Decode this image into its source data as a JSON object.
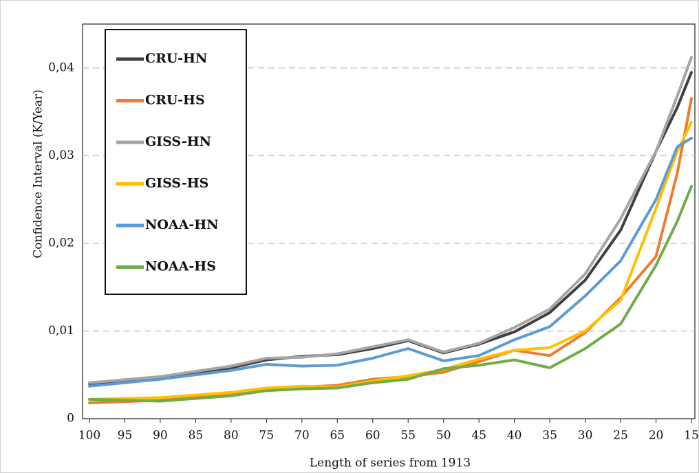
{
  "chart_data": {
    "type": "line",
    "x_label": "Length of series from 1913",
    "y_label": "Confidence Interval (K/Year)",
    "x": [
      100,
      90,
      80,
      75,
      70,
      65,
      60,
      55,
      50,
      45,
      40,
      35,
      30,
      25,
      20,
      17,
      15
    ],
    "xlim": [
      100,
      15
    ],
    "xticks": [
      100,
      95,
      90,
      85,
      80,
      75,
      70,
      65,
      60,
      55,
      50,
      45,
      40,
      35,
      30,
      25,
      20,
      15
    ],
    "ylim": [
      0,
      0.045
    ],
    "yticks": [
      0,
      {
        "value": 0.01,
        "label": "0,01"
      },
      {
        "value": 0.02,
        "label": "0,02"
      },
      {
        "value": 0.03,
        "label": "0,03"
      },
      {
        "value": 0.04,
        "label": "0,04"
      }
    ],
    "grid": true,
    "legend": "upper left",
    "series": [
      {
        "name": "CRU-HN",
        "color": "#404040",
        "values": [
          0.004,
          0.0047,
          0.0058,
          0.0067,
          0.0071,
          0.0073,
          0.008,
          0.0089,
          0.0075,
          0.0085,
          0.0099,
          0.0121,
          0.0158,
          0.0215,
          0.0305,
          0.0355,
          0.0395
        ]
      },
      {
        "name": "CRU-HS",
        "color": "#ed7d31",
        "values": [
          0.0018,
          0.0021,
          0.0028,
          0.0033,
          0.0036,
          0.0038,
          0.0045,
          0.0048,
          0.0053,
          0.0065,
          0.0078,
          0.0072,
          0.0098,
          0.0138,
          0.0185,
          0.028,
          0.0365
        ]
      },
      {
        "name": "GISS-HN",
        "color": "#a5a5a5",
        "values": [
          0.0041,
          0.0048,
          0.006,
          0.0069,
          0.007,
          0.0074,
          0.0082,
          0.009,
          0.0076,
          0.0086,
          0.0104,
          0.0125,
          0.0165,
          0.0228,
          0.0305,
          0.0368,
          0.0412
        ]
      },
      {
        "name": "GISS-HS",
        "color": "#ffc000",
        "values": [
          0.0022,
          0.0024,
          0.003,
          0.0035,
          0.0037,
          0.0036,
          0.0043,
          0.0049,
          0.0056,
          0.0068,
          0.0078,
          0.0081,
          0.01,
          0.0135,
          0.024,
          0.0305,
          0.0338
        ]
      },
      {
        "name": "NOAA-HN",
        "color": "#5b9bd5",
        "values": [
          0.0037,
          0.0045,
          0.0055,
          0.0062,
          0.006,
          0.0061,
          0.0069,
          0.008,
          0.0066,
          0.0072,
          0.009,
          0.0105,
          0.014,
          0.018,
          0.025,
          0.031,
          0.032
        ]
      },
      {
        "name": "NOAA-HS",
        "color": "#70ad47",
        "values": [
          0.0022,
          0.002,
          0.0026,
          0.0032,
          0.0034,
          0.0035,
          0.0041,
          0.0045,
          0.0057,
          0.0061,
          0.0067,
          0.0058,
          0.008,
          0.0108,
          0.0175,
          0.0225,
          0.0265
        ]
      }
    ]
  }
}
